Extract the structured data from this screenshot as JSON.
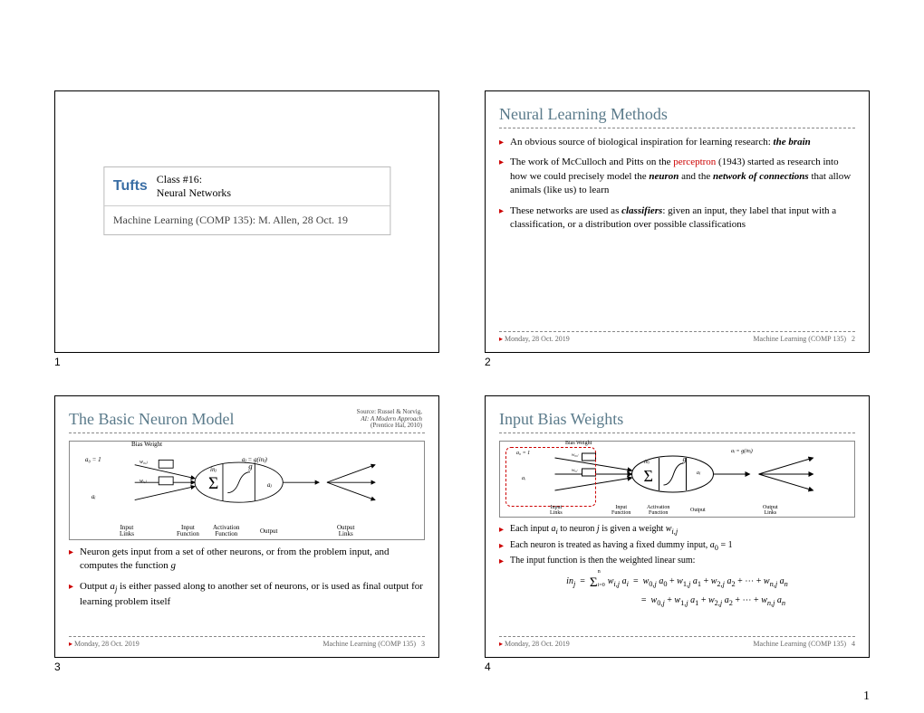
{
  "page_number": "1",
  "slides": [
    {
      "num": "1",
      "logo": "Tufts",
      "class_line1": "Class #16:",
      "class_line2": "Neural Networks",
      "subtitle": "Machine Learning (COMP 135):  M. Allen, 28 Oct. 19"
    },
    {
      "num": "2",
      "title": "Neural Learning Methods",
      "bullets": [
        "An obvious source of biological inspiration for learning research: <b><i>the brain</i></b>",
        "The work of McCulloch and Pitts on the <span class='highlight-red'>perceptron</span> (1943) started as research into how we could precisely model the <b><i>neuron</i></b> and the <b><i>network of connections</i></b> that allow animals (like us) to learn",
        "These networks are used as <b><i>classifiers</i></b>:  given an input, they label that input with a classification, or a distribution over possible classifications"
      ],
      "footer_left": "Monday, 28 Oct. 2019",
      "footer_right": "Machine Learning (COMP 135)",
      "footer_page": "2"
    },
    {
      "num": "3",
      "title": "The Basic Neuron Model",
      "source": "Source: Russel & Norvig,\nAI: A Modern Approach\n(Prentice Hal, 2010)",
      "bullets": [
        "Neuron gets input from a set of other neurons, or from the problem input, and computes the function <i>g</i>",
        "Output <i>a<sub>j</sub></i> is either passed along to another set of neurons, or is used as final output for learning problem itself"
      ],
      "footer_left": "Monday, 28 Oct. 2019",
      "footer_right": "Machine Learning (COMP 135)",
      "footer_page": "3",
      "diagram": {
        "bias_label": "Bias Weight",
        "a0": "a₀ = 1",
        "w0j": "w₀,ⱼ",
        "wij": "wᵢ,ⱼ",
        "ai": "aᵢ",
        "inj": "inⱼ",
        "g": "g",
        "aj": "aⱼ",
        "aj_eq": "aⱼ = g(inⱼ)",
        "lbl_inlinks": "Input\nLinks",
        "lbl_infn": "Input\nFunction",
        "lbl_actfn": "Activation\nFunction",
        "lbl_output": "Output",
        "lbl_outlinks": "Output\nLinks"
      }
    },
    {
      "num": "4",
      "title": "Input Bias Weights",
      "bullets": [
        "Each input <i>a<sub>i</sub></i> to neuron <i>j</i> is given a weight <i>w<sub>i,j</sub></i>",
        "Each neuron is treated as having a fixed dummy input, <i>a</i><sub>0</sub> = 1",
        "The input function is then the weighted linear sum:"
      ],
      "math_line1": "inⱼ  =  Σᵢ₌₀ⁿ wᵢ,ⱼ aᵢ  =  w₀,ⱼ a₀ + w₁,ⱼ a₁ + w₂,ⱼ a₂ + ⋯ + wₙ,ⱼ aₙ",
      "math_line2": "=  w₀,ⱼ + w₁,ⱼ a₁ + w₂,ⱼ a₂ + ⋯ + wₙ,ⱼ aₙ",
      "footer_left": "Monday, 28 Oct. 2019",
      "footer_right": "Machine Learning (COMP 135)",
      "footer_page": "4"
    }
  ],
  "colors": {
    "title": "#5a7a8a",
    "accent": "#c00000",
    "border": "#000000",
    "dash": "#888888",
    "logo": "#3a6ea5"
  }
}
